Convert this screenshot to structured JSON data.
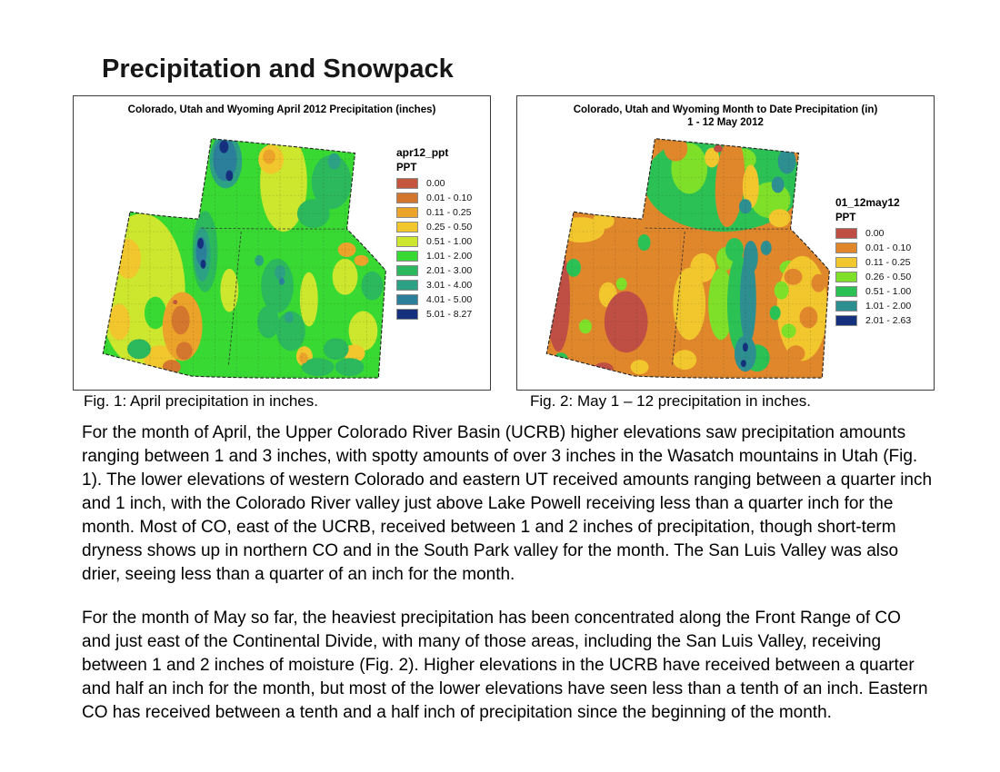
{
  "slide": {
    "title": "Precipitation and Snowpack"
  },
  "figures": [
    {
      "title_lines": [
        "Colorado, Utah and Wyoming April 2012 Precipitation (inches)"
      ],
      "caption": "Fig. 1: April precipitation in inches.",
      "legend": {
        "layer_name": "apr12_ppt",
        "field": "PPT",
        "classes": [
          {
            "label": "0.00",
            "color": "#C4553E"
          },
          {
            "label": "0.01 - 0.10",
            "color": "#D4772E"
          },
          {
            "label": "0.11 - 0.25",
            "color": "#EBA32A"
          },
          {
            "label": "0.25 - 0.50",
            "color": "#F2C72E"
          },
          {
            "label": "0.51 - 1.00",
            "color": "#CDE62E"
          },
          {
            "label": "1.01 - 2.00",
            "color": "#38D932"
          },
          {
            "label": "2.01 - 3.00",
            "color": "#2CB85C"
          },
          {
            "label": "3.01 - 4.00",
            "color": "#2CA183"
          },
          {
            "label": "4.01 - 5.00",
            "color": "#2C7F9B"
          },
          {
            "label": "5.01 - 8.27",
            "color": "#15307D"
          }
        ]
      }
    },
    {
      "title_lines": [
        "Colorado, Utah and Wyoming Month to Date Precipitation (in)",
        "1 - 12 May 2012"
      ],
      "caption": "Fig. 2:  May 1 – 12 precipitation in inches.",
      "legend": {
        "layer_name": "01_12may12",
        "field": "PPT",
        "classes": [
          {
            "label": "0.00",
            "color": "#BF4F44"
          },
          {
            "label": "0.01 - 0.10",
            "color": "#E0872B"
          },
          {
            "label": "0.11 - 0.25",
            "color": "#F2C72E"
          },
          {
            "label": "0.26 - 0.50",
            "color": "#7FE02A"
          },
          {
            "label": "0.51 - 1.00",
            "color": "#2BC155"
          },
          {
            "label": "1.01 - 2.00",
            "color": "#2E8F90"
          },
          {
            "label": "2.01 - 2.63",
            "color": "#15307D"
          }
        ]
      }
    }
  ],
  "paragraphs": [
    "For the month of April, the Upper Colorado River Basin (UCRB) higher elevations saw precipitation amounts ranging between 1 and 3 inches, with spotty amounts of over 3 inches in the Wasatch mountains in Utah (Fig. 1).  The lower elevations of western Colorado and eastern UT received amounts ranging between a quarter inch and 1 inch, with the Colorado River valley just above Lake Powell receiving less than a quarter inch for the month.  Most of CO, east of the UCRB, received between 1 and 2 inches of precipitation, though short-term dryness shows up in northern CO and in the South Park valley for the month.  The San Luis Valley was also drier, seeing less than a quarter of an inch for the month.",
    "For the month of May so far, the heaviest precipitation has been concentrated along the Front Range of CO and just east of the Continental Divide, with many of those areas, including the San Luis Valley, receiving between 1 and 2 inches of moisture (Fig. 2).  Higher elevations in the UCRB have received between a quarter and half an inch for the month, but most of the lower elevations have seen less than a tenth of an inch.  Eastern CO has received between a tenth and a half inch of precipitation since the beginning of the month."
  ]
}
